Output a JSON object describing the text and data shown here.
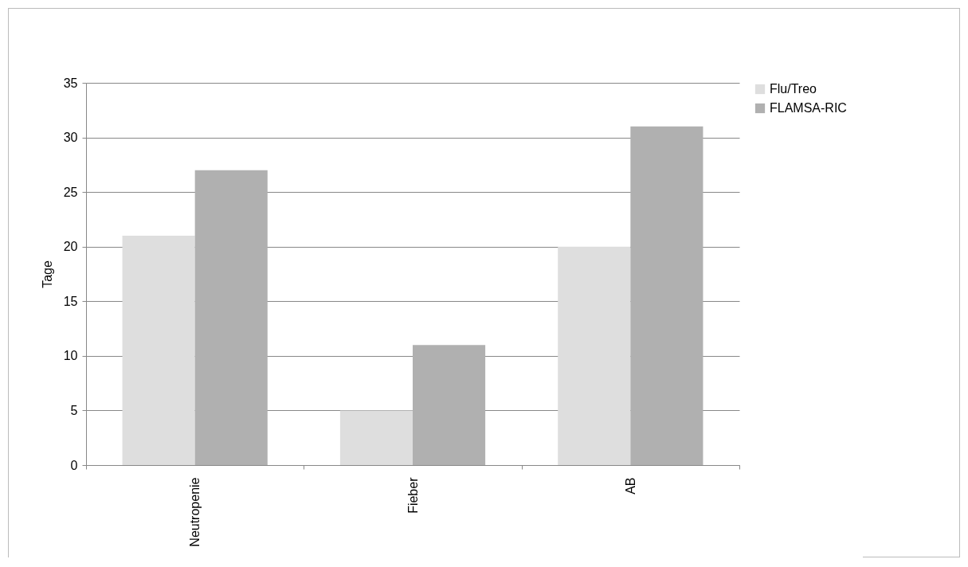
{
  "chart_data": {
    "type": "bar",
    "ylabel": "Tage",
    "categories": [
      "Neutropenie",
      "Fieber",
      "AB"
    ],
    "series": [
      {
        "name": "Flu/Treo",
        "color": "#dedede",
        "values": [
          21,
          5,
          20
        ]
      },
      {
        "name": "FLAMSA-RIC",
        "color": "#b0b0b0",
        "values": [
          27,
          11,
          31
        ]
      }
    ],
    "ylim": [
      0,
      35
    ],
    "yticks": [
      0,
      5,
      10,
      15,
      20,
      25,
      30,
      35
    ],
    "grid": "y",
    "legend": "right"
  }
}
